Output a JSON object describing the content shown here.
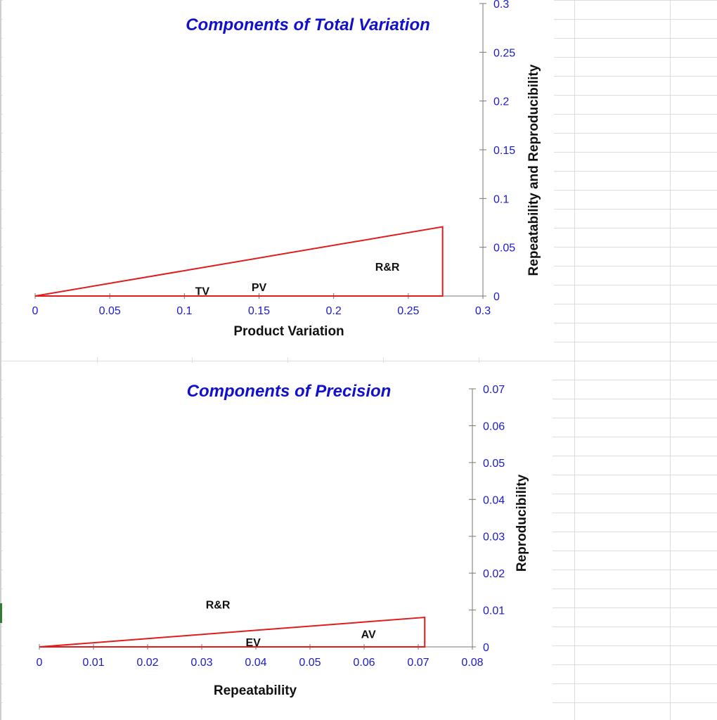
{
  "colors": {
    "triangle": "#e01c1c",
    "title": "#1111cc",
    "ticks": "#1a1acc",
    "axis": "#777777",
    "labels": "#111111"
  },
  "chart_data": [
    {
      "type": "line",
      "title": "Components of Total Variation",
      "xlabel": "Product Variation",
      "ylabel": "Repeatability and Reproducibility",
      "xlim": [
        0,
        0.3
      ],
      "ylim": [
        0,
        0.3
      ],
      "x_ticks": [
        0,
        0.05,
        0.1,
        0.15,
        0.2,
        0.25,
        0.3
      ],
      "x_tick_labels": [
        "0",
        "0.05",
        "0.1",
        "0.15",
        "0.2",
        "0.25",
        "0.3"
      ],
      "y_ticks": [
        0,
        0.05,
        0.1,
        0.15,
        0.2,
        0.25,
        0.3
      ],
      "y_tick_labels": [
        "0",
        "0.05",
        "0.1",
        "0.15",
        "0.2",
        "0.25",
        "0.3"
      ],
      "grid": false,
      "series": [
        {
          "name": "triangle",
          "x": [
            0,
            0.273,
            0.273,
            0
          ],
          "y": [
            0,
            0,
            0.071,
            0
          ]
        }
      ],
      "annotations": [
        {
          "text": "TV",
          "x": 0.112,
          "y": 0.001
        },
        {
          "text": "PV",
          "x": 0.15,
          "y": 0.005
        },
        {
          "text": "R&R",
          "x": 0.236,
          "y": 0.026
        }
      ]
    },
    {
      "type": "line",
      "title": "Components of Precision",
      "xlabel": "Repeatability",
      "ylabel": "Reproducibility",
      "xlim": [
        0,
        0.08
      ],
      "ylim": [
        0,
        0.07
      ],
      "x_ticks": [
        0,
        0.01,
        0.02,
        0.03,
        0.04,
        0.05,
        0.06,
        0.07,
        0.08
      ],
      "x_tick_labels": [
        "0",
        "0.01",
        "0.02",
        "0.03",
        "0.04",
        "0.05",
        "0.06",
        "0.07",
        "0.08"
      ],
      "y_ticks": [
        0,
        0.01,
        0.02,
        0.03,
        0.04,
        0.05,
        0.06,
        0.07
      ],
      "y_tick_labels": [
        "0",
        "0.01",
        "0.02",
        "0.03",
        "0.04",
        "0.05",
        "0.06",
        "0.07"
      ],
      "grid": false,
      "series": [
        {
          "name": "triangle",
          "x": [
            0,
            0.0712,
            0.0712,
            0
          ],
          "y": [
            0,
            0,
            0.008,
            0
          ]
        }
      ],
      "annotations": [
        {
          "text": "R&R",
          "x": 0.033,
          "y": 0.0104
        },
        {
          "text": "EV",
          "x": 0.0395,
          "y": 0.0002
        },
        {
          "text": "AV",
          "x": 0.0608,
          "y": 0.0024
        }
      ]
    }
  ]
}
